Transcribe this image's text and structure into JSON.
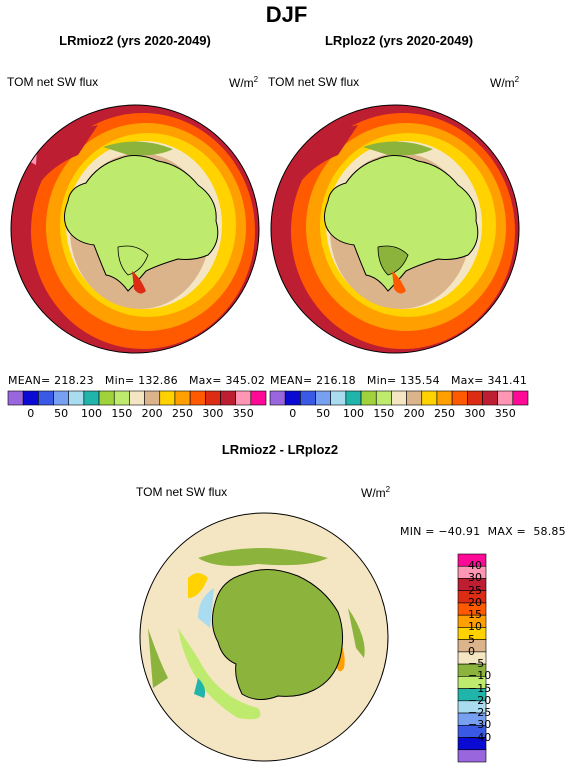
{
  "figure": {
    "title": "DJF"
  },
  "panels": [
    {
      "subtitle": "LRmioz2 (yrs 2020-2049)",
      "variable": "TOM net SW flux",
      "units": "W/m",
      "units_sup": "2",
      "mean_label": "MEAN=",
      "mean": "218.23",
      "min_label": "Min=",
      "min": "132.86",
      "max_label": "Max=",
      "max": "345.02"
    },
    {
      "subtitle": "LRploz2 (yrs 2020-2049)",
      "variable": "TOM net SW flux",
      "units": "W/m",
      "units_sup": "2",
      "mean_label": "MEAN=",
      "mean": "216.18",
      "min_label": "Min=",
      "min": "135.54",
      "max_label": "Max=",
      "max": "341.41"
    }
  ],
  "colorbar_top": {
    "colors": [
      "#9966dd",
      "#0a0ad2",
      "#3a5ae6",
      "#78a0f0",
      "#aadcf0",
      "#20b4aa",
      "#a0d23c",
      "#beeb6e",
      "#f5e6c3",
      "#dcb48c",
      "#ffd200",
      "#ffa000",
      "#ff5a00",
      "#dc2d14",
      "#be1e32",
      "#ff96b4",
      "#ff0a96"
    ],
    "ticks": [
      "0",
      "50",
      "100",
      "150",
      "200",
      "250",
      "300",
      "350"
    ]
  },
  "difference": {
    "subtitle": "LRmioz2 - LRploz2",
    "variable": "TOM net SW flux",
    "units": "W/m",
    "units_sup": "2",
    "minmax": "MIN = −40.91  MAX =  58.85",
    "colorbar": {
      "colors": [
        "#9966dd",
        "#0a0ad2",
        "#3a5ae6",
        "#78a0f0",
        "#aadcf0",
        "#20b4aa",
        "#beeb6e",
        "#8cb43c",
        "#f5e6c3",
        "#dcb48c",
        "#ffd200",
        "#ffa000",
        "#ff5a00",
        "#dc2d14",
        "#be1e32",
        "#ff96b4",
        "#ff0a96"
      ],
      "ticks": [
        "40",
        "30",
        "25",
        "20",
        "15",
        "10",
        "5",
        "0",
        "−5",
        "−10",
        "−15",
        "−20",
        "−25",
        "−30",
        "−40"
      ]
    }
  }
}
